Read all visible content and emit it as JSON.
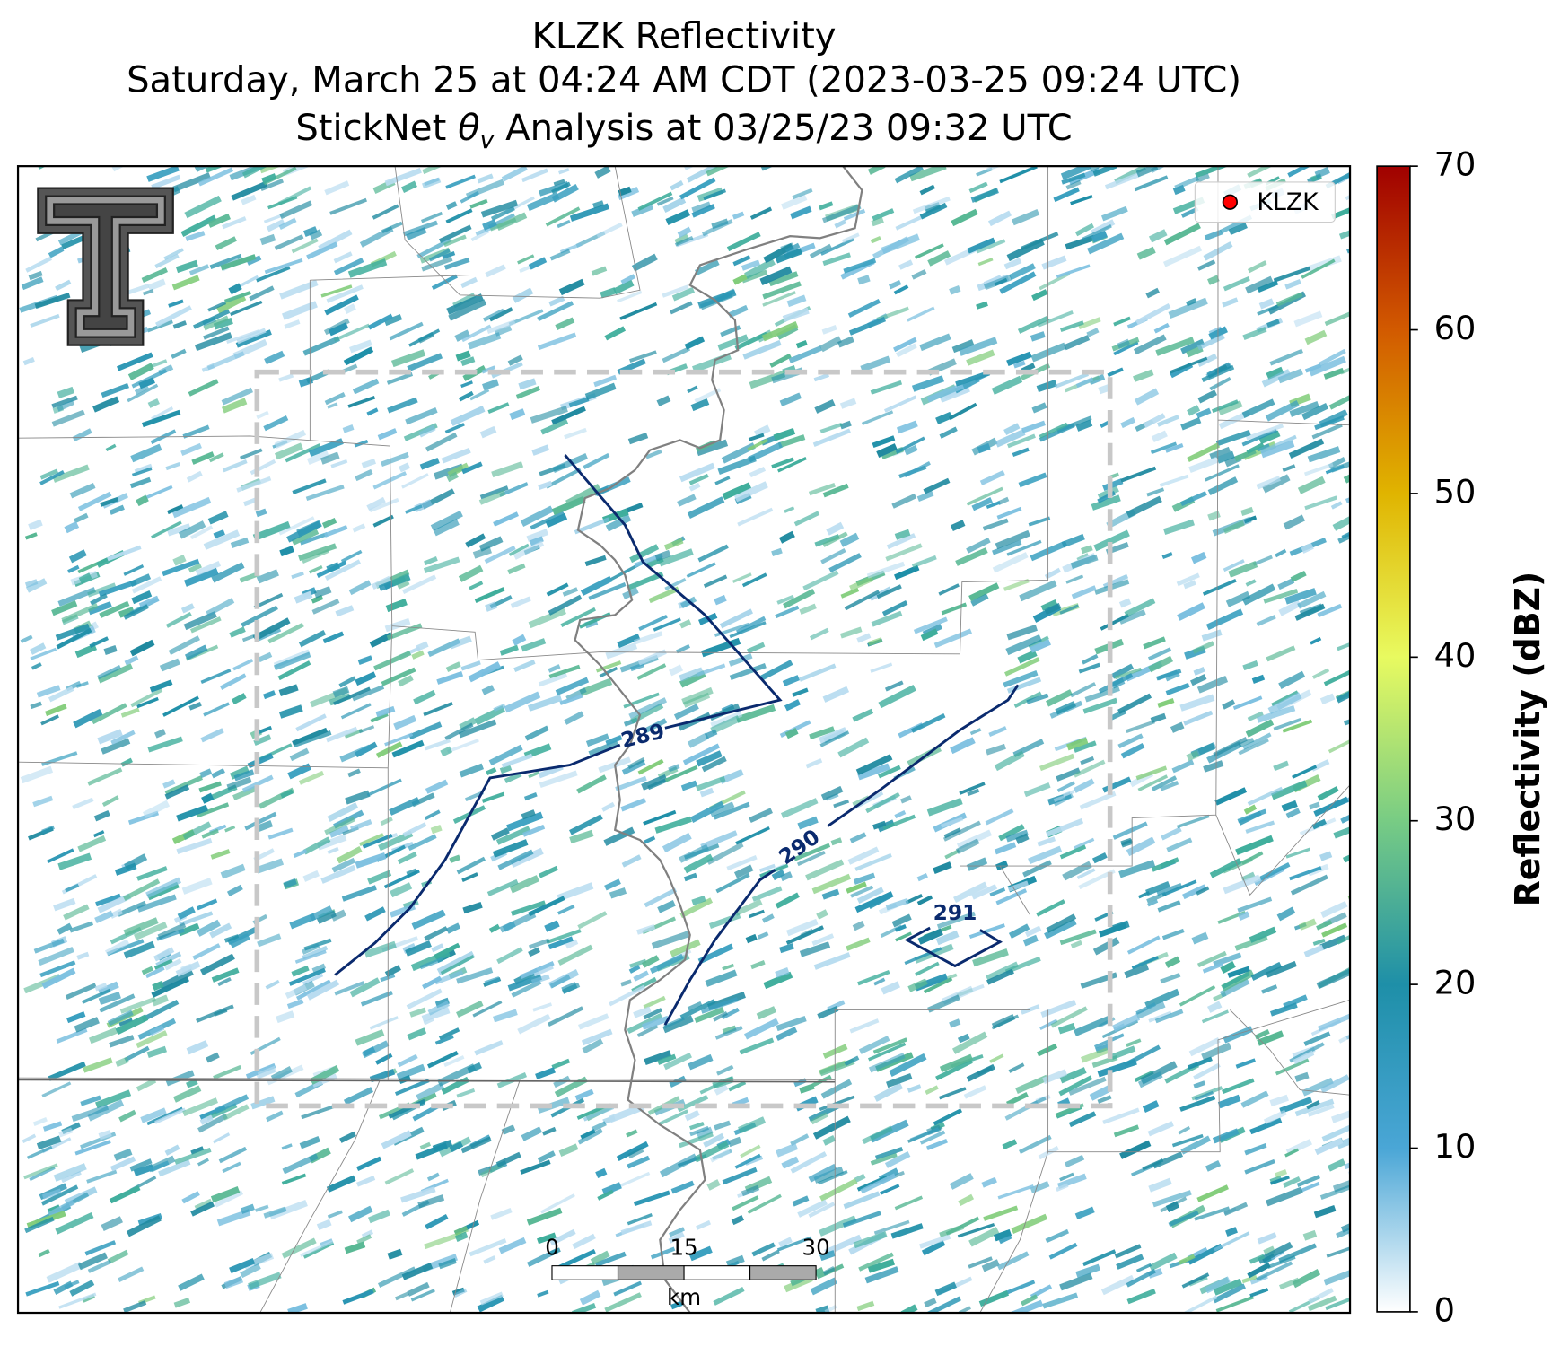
{
  "header": {
    "lines": [
      "KLZK Reflectivity",
      "Saturday, March 25 at 04:24 AM CDT (2023-03-25 09:24 UTC)"
    ],
    "line3": {
      "before": "StickNet ",
      "symbol": "θ",
      "subscript": "v",
      "after": " Analysis at 03/25/23 09:32 UTC"
    }
  },
  "map": {
    "legend": {
      "label": "KLZK",
      "color": "#ff0000"
    },
    "contours": [
      {
        "label": "289"
      },
      {
        "label": "290"
      },
      {
        "label": "291"
      }
    ],
    "scale_bar": {
      "labels": [
        "0",
        "15",
        "30"
      ],
      "unit": "km"
    }
  },
  "colorbar": {
    "label": "Reflectivity (dBZ)",
    "lim": [
      0,
      70
    ],
    "ticks": [
      0,
      10,
      20,
      30,
      40,
      50,
      60,
      70
    ],
    "colors": [
      "#ffffff",
      "#4aa6d6",
      "#1e8fa8",
      "#78cc84",
      "#e8fa60",
      "#e0b400",
      "#d25a00",
      "#a00000"
    ]
  }
}
